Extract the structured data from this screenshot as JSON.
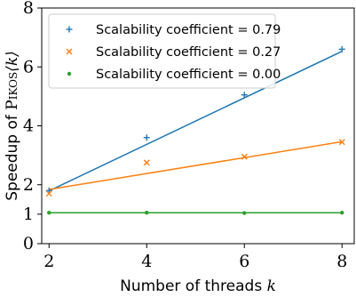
{
  "chart_data": {
    "type": "scatter",
    "xlabel": "Number of threads k",
    "xlabel_parts": {
      "text": "Number of threads ",
      "math": "k"
    },
    "ylabel": "Speedup of PIKOS⟨k⟩",
    "ylabel_parts": {
      "text": "Speedup of ",
      "name": "Pikos",
      "math": "⟨k⟩"
    },
    "xlim": [
      1.85,
      8.25
    ],
    "ylim": [
      0,
      8
    ],
    "xticks": [
      2,
      4,
      6,
      8
    ],
    "yticks": [
      0,
      1,
      2,
      4,
      6,
      8
    ],
    "grid": false,
    "legend_position": "top-left",
    "series": [
      {
        "name": "Scalability coefficient = 0.79",
        "marker": "plus",
        "color": "#1f77b4",
        "x": [
          2,
          4,
          6,
          8
        ],
        "y": [
          1.8,
          3.6,
          5.05,
          6.6
        ],
        "fit": {
          "slope": 0.79,
          "intercept": 0.21
        }
      },
      {
        "name": "Scalability coefficient = 0.27",
        "marker": "x",
        "color": "#ff7f0e",
        "x": [
          2,
          4,
          6,
          8
        ],
        "y": [
          1.7,
          2.75,
          2.95,
          3.45
        ],
        "fit": {
          "slope": 0.27,
          "intercept": 1.3
        }
      },
      {
        "name": "Scalability coefficient = 0.00",
        "marker": "dot",
        "color": "#2ca02c",
        "x": [
          2,
          4,
          6,
          8
        ],
        "y": [
          1.05,
          1.05,
          1.04,
          1.05
        ],
        "fit": {
          "slope": 0.0,
          "intercept": 1.05
        }
      }
    ]
  }
}
